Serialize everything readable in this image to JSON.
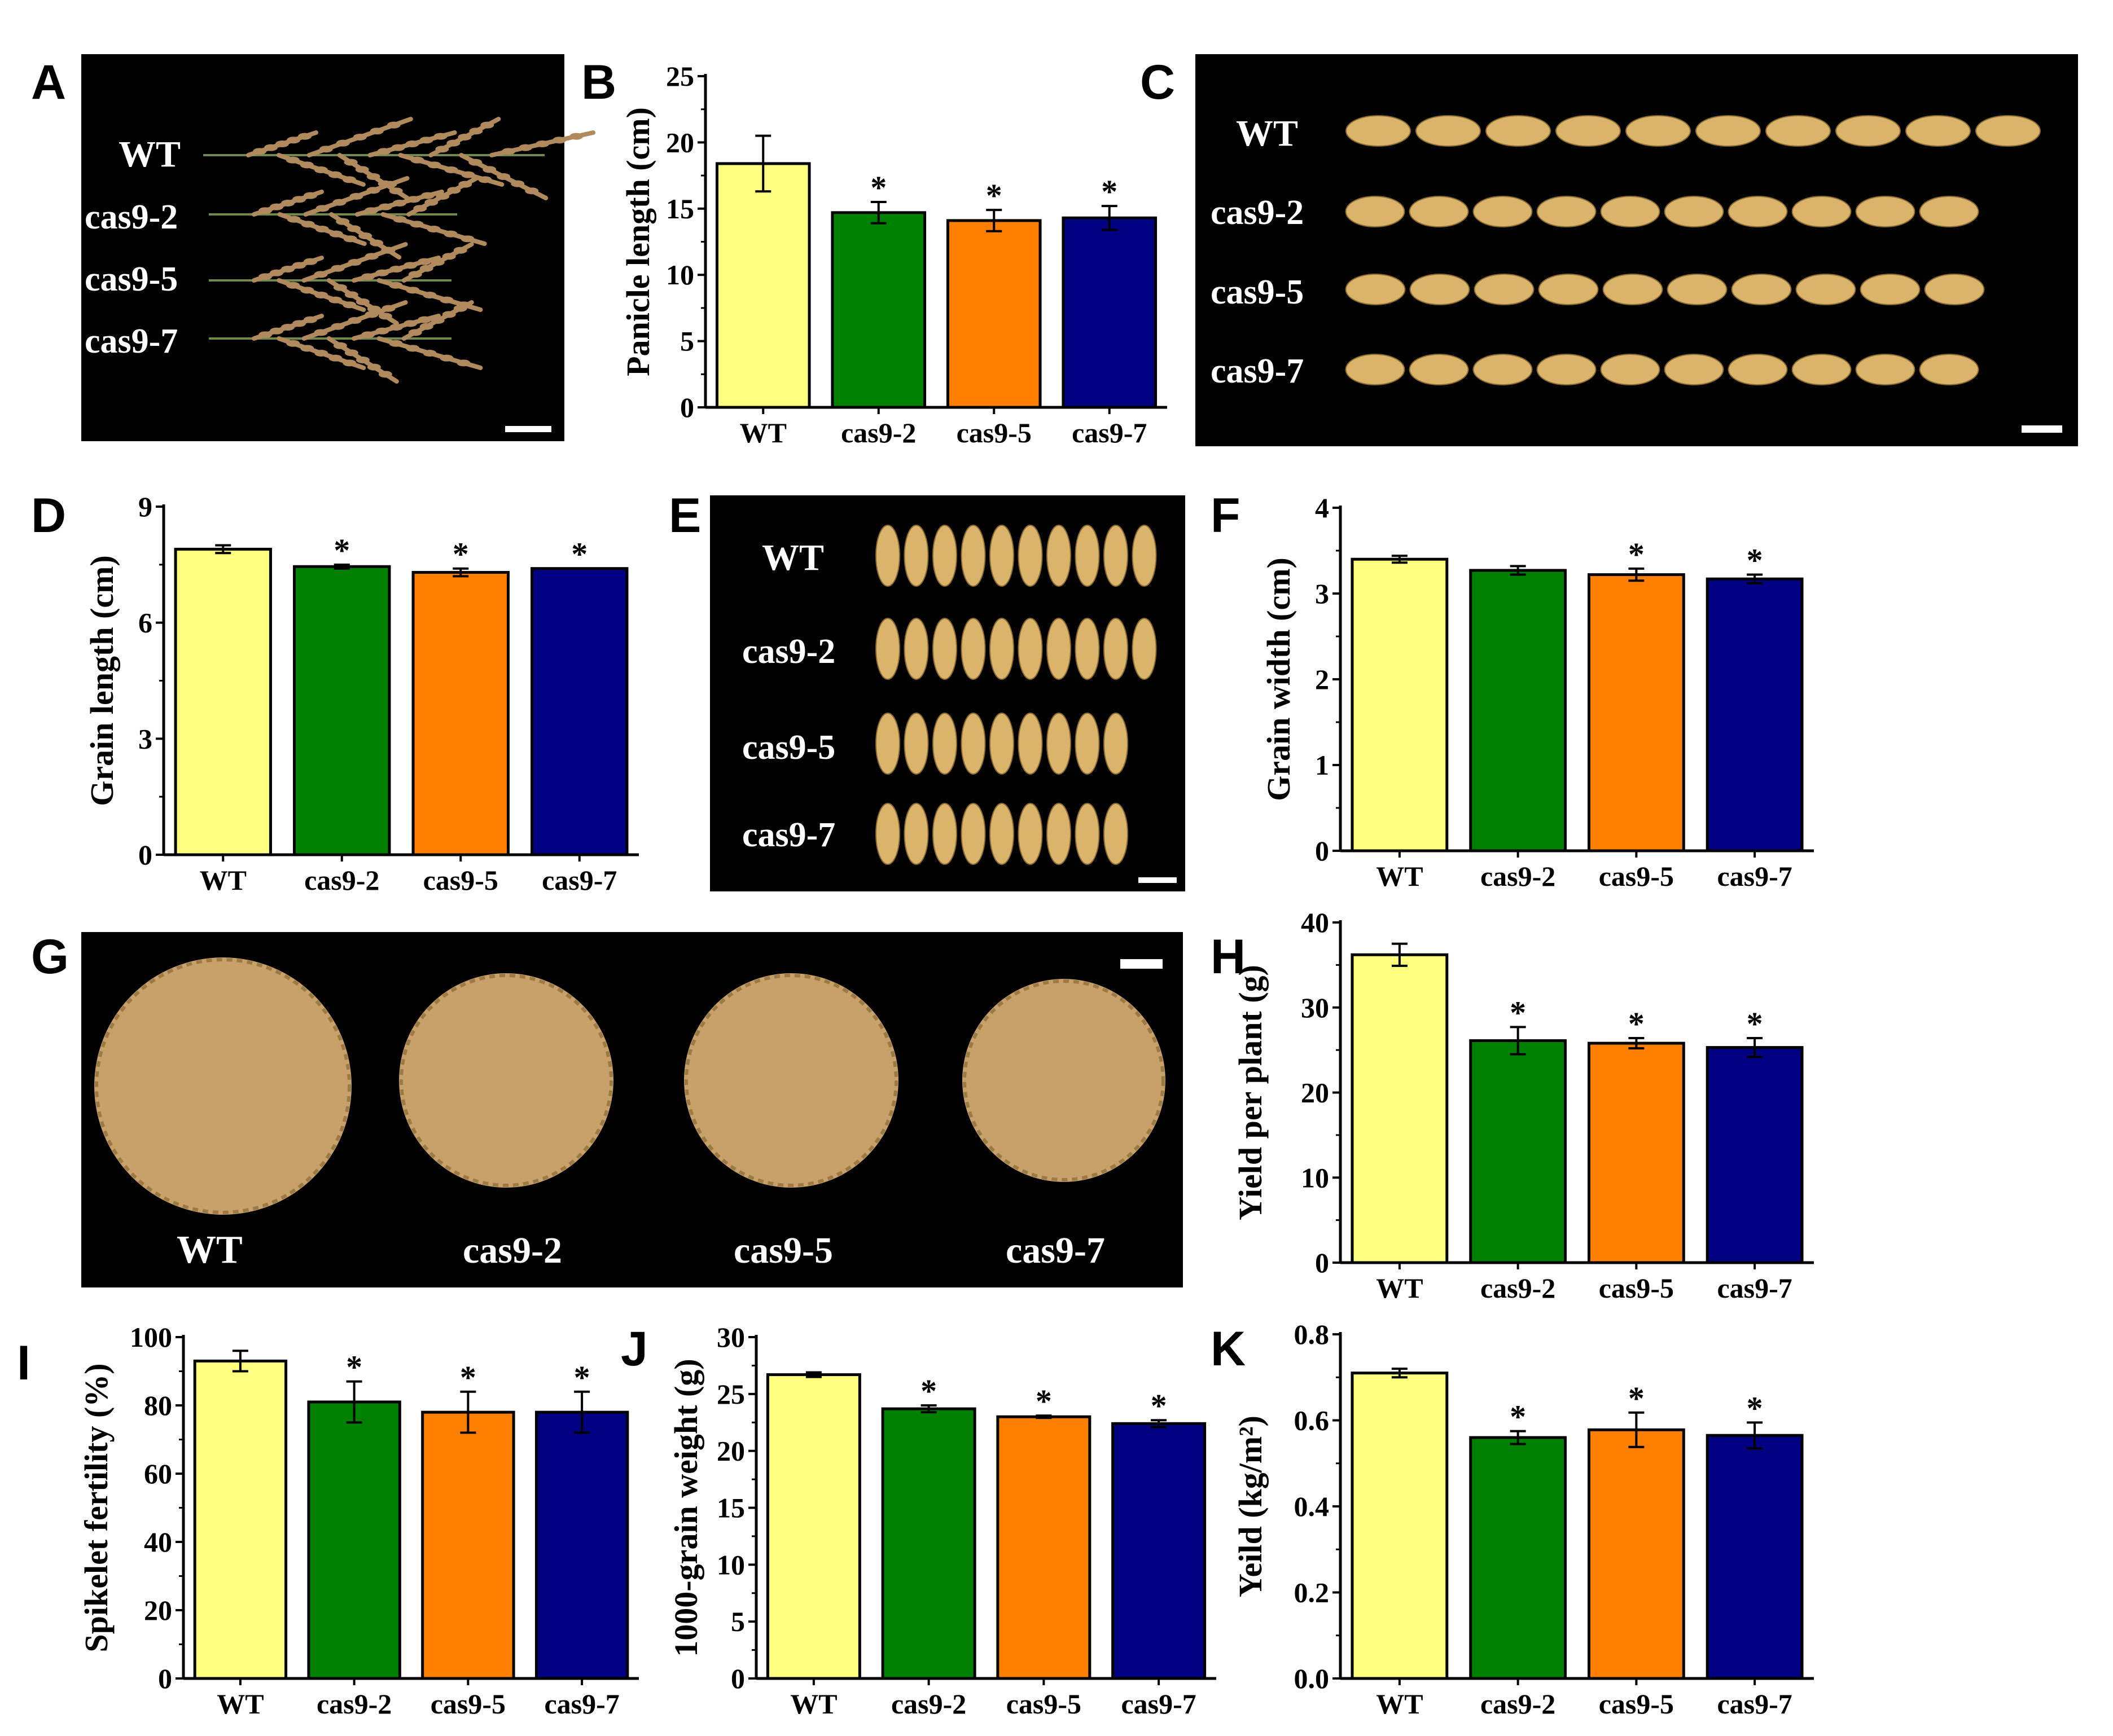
{
  "colors": {
    "WT": "#ffff80",
    "cas9-2": "#008000",
    "cas9-5": "#ff8000",
    "cas9-7": "#000080",
    "photo_background": "#000000",
    "grain": "#d9b46a",
    "panicle": "#b08a5c",
    "pile": "#c8a06a"
  },
  "photos": {
    "A": {
      "label": "A",
      "rows": [
        "WT",
        "cas9-2",
        "cas9-5",
        "cas9-7"
      ]
    },
    "C": {
      "label": "C",
      "rows": [
        "WT",
        "cas9-2",
        "cas9-5",
        "cas9-7"
      ]
    },
    "E": {
      "label": "E",
      "rows": [
        "WT",
        "cas9-2",
        "cas9-5",
        "cas9-7"
      ]
    },
    "G": {
      "label": "G",
      "rows": [
        "WT",
        "cas9-2",
        "cas9-5",
        "cas9-7"
      ]
    }
  },
  "chart_data": [
    {
      "panel": "B",
      "type": "bar",
      "categories": [
        "WT",
        "cas9-2",
        "cas9-5",
        "cas9-7"
      ],
      "values": [
        18.4,
        14.7,
        14.1,
        14.3
      ],
      "errors": [
        2.1,
        0.8,
        0.8,
        0.9
      ],
      "significant": [
        false,
        true,
        true,
        true
      ],
      "ylabel": "Panicle length (cm)",
      "ylim": [
        0,
        25
      ],
      "yticks": [
        0,
        5,
        10,
        15,
        20,
        25
      ],
      "yticklabels": [
        "0",
        "5",
        "10",
        "15",
        "20",
        "25"
      ]
    },
    {
      "panel": "D",
      "type": "bar",
      "categories": [
        "WT",
        "cas9-2",
        "cas9-5",
        "cas9-7"
      ],
      "values": [
        7.9,
        7.45,
        7.3,
        7.4
      ],
      "errors": [
        0.1,
        0.05,
        0.1,
        0.0
      ],
      "significant": [
        false,
        true,
        true,
        true
      ],
      "ylabel": "Grain length (cm)",
      "ylim": [
        0,
        9
      ],
      "yticks": [
        0,
        3,
        6,
        9
      ],
      "yticklabels": [
        "0",
        "3",
        "6",
        "9"
      ]
    },
    {
      "panel": "F",
      "type": "bar",
      "categories": [
        "WT",
        "cas9-2",
        "cas9-5",
        "cas9-7"
      ],
      "values": [
        3.4,
        3.27,
        3.22,
        3.17
      ],
      "errors": [
        0.04,
        0.05,
        0.07,
        0.05
      ],
      "significant": [
        false,
        false,
        true,
        true
      ],
      "ylabel": "Grain width (cm)",
      "ylim": [
        0,
        4
      ],
      "yticks": [
        0,
        1,
        2,
        3,
        4
      ],
      "yticklabels": [
        "0",
        "1",
        "2",
        "3",
        "4"
      ]
    },
    {
      "panel": "H",
      "type": "bar",
      "categories": [
        "WT",
        "cas9-2",
        "cas9-5",
        "cas9-7"
      ],
      "values": [
        36.2,
        26.1,
        25.8,
        25.3
      ],
      "errors": [
        1.3,
        1.6,
        0.6,
        1.1
      ],
      "significant": [
        false,
        true,
        true,
        true
      ],
      "ylabel": "Yield per plant (g)",
      "ylim": [
        0,
        40
      ],
      "yticks": [
        0,
        10,
        20,
        30,
        40
      ],
      "yticklabels": [
        "0",
        "10",
        "20",
        "30",
        "40"
      ]
    },
    {
      "panel": "I",
      "type": "bar",
      "categories": [
        "WT",
        "cas9-2",
        "cas9-5",
        "cas9-7"
      ],
      "values": [
        93,
        81,
        78,
        78
      ],
      "errors": [
        3,
        6,
        6,
        6
      ],
      "significant": [
        false,
        true,
        true,
        true
      ],
      "ylabel": "Spikelet fertility (%)",
      "ylim": [
        0,
        100
      ],
      "yticks": [
        0,
        20,
        40,
        60,
        80,
        100
      ],
      "yticklabels": [
        "0",
        "20",
        "40",
        "60",
        "80",
        "100"
      ]
    },
    {
      "panel": "J",
      "type": "bar",
      "categories": [
        "WT",
        "cas9-2",
        "cas9-5",
        "cas9-7"
      ],
      "values": [
        26.7,
        23.7,
        23.0,
        22.4
      ],
      "errors": [
        0.2,
        0.3,
        0.1,
        0.3
      ],
      "significant": [
        false,
        true,
        true,
        true
      ],
      "ylabel": "1000-grain weight (g)",
      "ylim": [
        0,
        30
      ],
      "yticks": [
        0,
        5,
        10,
        15,
        20,
        25,
        30
      ],
      "yticklabels": [
        "0",
        "5",
        "10",
        "15",
        "20",
        "25",
        "30"
      ]
    },
    {
      "panel": "K",
      "type": "bar",
      "categories": [
        "WT",
        "cas9-2",
        "cas9-5",
        "cas9-7"
      ],
      "values": [
        0.71,
        0.56,
        0.578,
        0.565
      ],
      "errors": [
        0.01,
        0.015,
        0.04,
        0.03
      ],
      "significant": [
        false,
        true,
        true,
        true
      ],
      "ylabel": "Yeild (kg/m²)",
      "ylim": [
        0,
        0.8
      ],
      "yticks": [
        0,
        0.2,
        0.4,
        0.6,
        0.8
      ],
      "yticklabels": [
        "0.0",
        "0.2",
        "0.4",
        "0.6",
        "0.8"
      ]
    }
  ]
}
